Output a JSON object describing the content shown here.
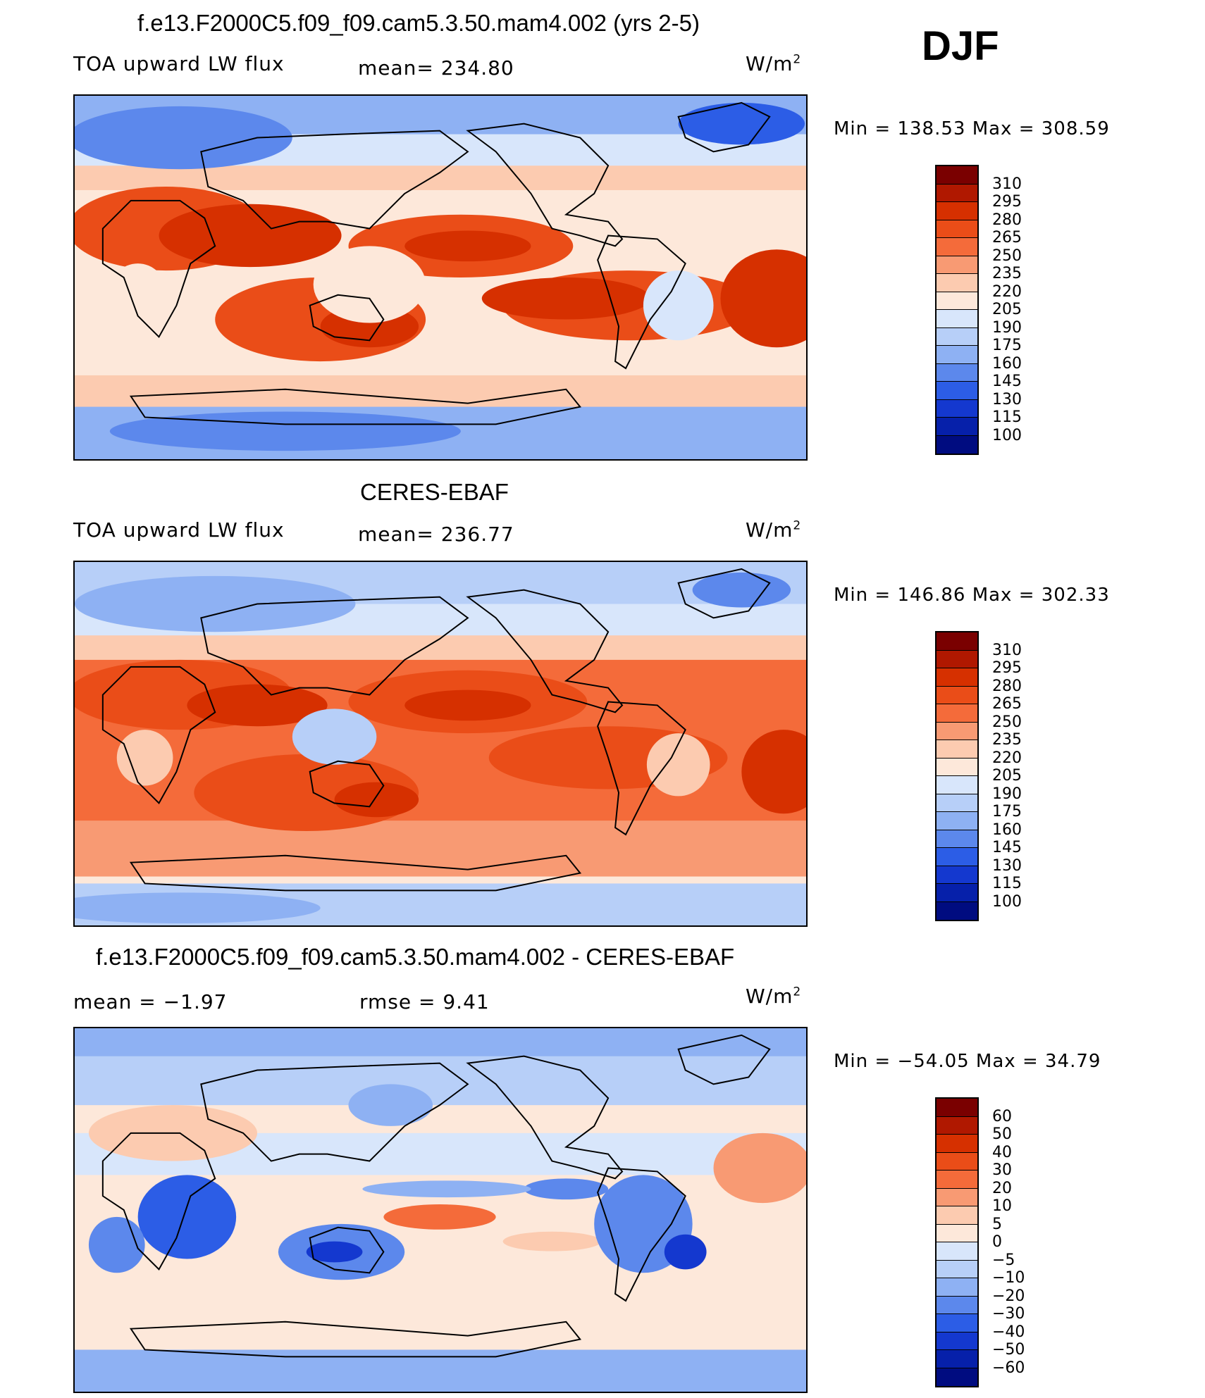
{
  "season": "DJF",
  "panels": [
    {
      "title": "f.e13.F2000C5.f09_f09.cam5.3.50.mam4.002 (yrs 2-5)",
      "left_label": "TOA upward LW flux",
      "center_label": "mean=  234.80",
      "units": "W/m",
      "units_sup": "2",
      "minmax": "Min  =  138.53  Max  =  308.59",
      "colorbar_labels": [
        "310",
        "295",
        "280",
        "265",
        "250",
        "235",
        "220",
        "205",
        "190",
        "175",
        "160",
        "145",
        "130",
        "115",
        "100"
      ],
      "field": "model"
    },
    {
      "title": "CERES-EBAF",
      "left_label": "TOA upward LW flux",
      "center_label": "mean=  236.77",
      "units": "W/m",
      "units_sup": "2",
      "minmax": "Min  =  146.86  Max  =  302.33",
      "colorbar_labels": [
        "310",
        "295",
        "280",
        "265",
        "250",
        "235",
        "220",
        "205",
        "190",
        "175",
        "160",
        "145",
        "130",
        "115",
        "100"
      ],
      "field": "obs"
    },
    {
      "title": "f.e13.F2000C5.f09_f09.cam5.3.50.mam4.002 - CERES-EBAF",
      "left_label": "mean  =    −1.97",
      "center_label": "rmse  =     9.41",
      "units": "W/m",
      "units_sup": "2",
      "minmax": "Min  =  −54.05  Max  =    34.79",
      "colorbar_labels": [
        "60",
        "50",
        "40",
        "30",
        "20",
        "10",
        "5",
        "0",
        "−5",
        "−10",
        "−20",
        "−30",
        "−40",
        "−50",
        "−60"
      ],
      "field": "diff"
    }
  ],
  "colors": {
    "colorbar": [
      "#7a0000",
      "#b01800",
      "#d63000",
      "#ea4d18",
      "#f46b3a",
      "#f89a73",
      "#fccbb0",
      "#fde8da",
      "#d8e6fb",
      "#b7cff8",
      "#8eb1f3",
      "#5c88ec",
      "#2c5de6",
      "#1438cf",
      "#0620aa",
      "#000c80"
    ]
  }
}
